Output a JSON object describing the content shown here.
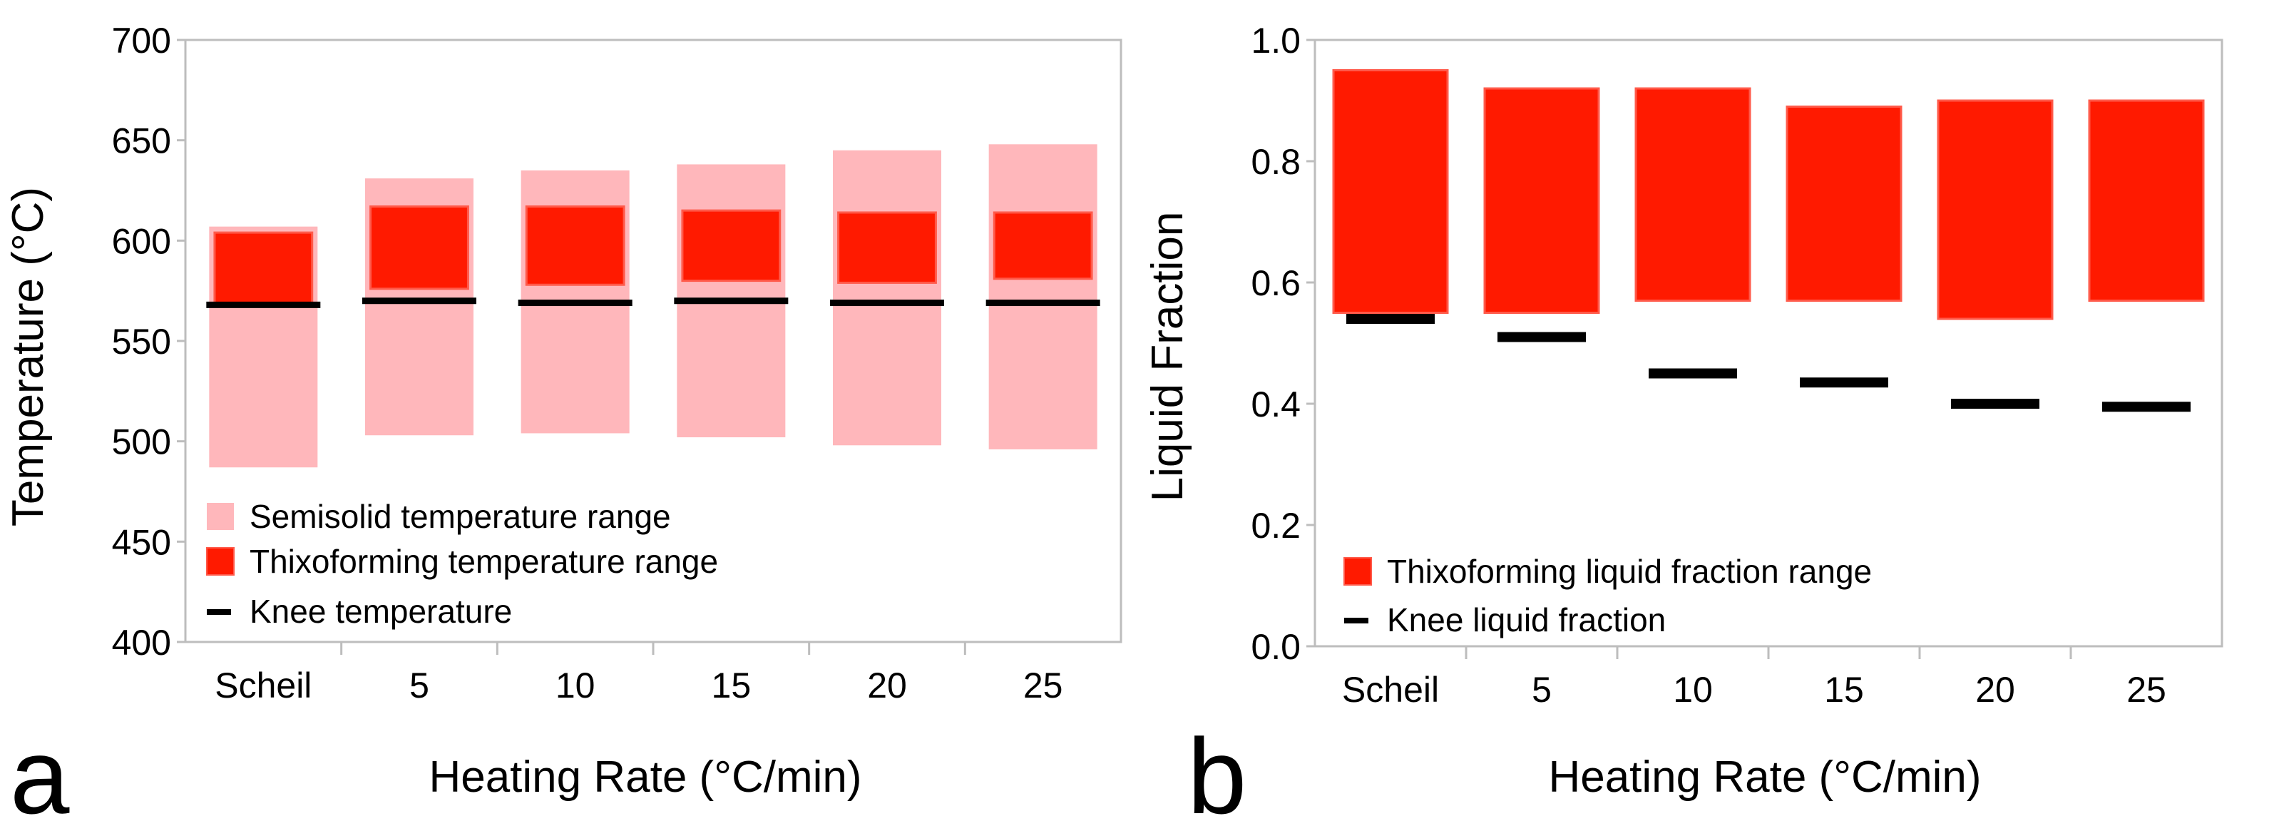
{
  "colors": {
    "semisolid": "#ffb7bb",
    "thixo": "#ff1a00",
    "thixo_edge": "#ff5a4a",
    "knee": "#000000",
    "plot_border": "#bdbdbd"
  },
  "chart_data": [
    {
      "type": "bar",
      "panel_label": "a",
      "title": "",
      "xlabel": "Heating Rate (°C/min)",
      "ylabel": "Temperature (°C)",
      "ylim": [
        400,
        700
      ],
      "yticks": [
        "400",
        "450",
        "500",
        "550",
        "600",
        "650",
        "700"
      ],
      "categories": [
        "Scheil",
        "5",
        "10",
        "15",
        "20",
        "25"
      ],
      "grid": false,
      "legend_position": "bottom-left",
      "series": [
        {
          "name": "Semisolid temperature range",
          "kind": "floating-bar",
          "low": [
            487,
            503,
            504,
            502,
            498,
            496
          ],
          "high": [
            607,
            631,
            635,
            638,
            645,
            648
          ]
        },
        {
          "name": "Thixoforming temperature range",
          "kind": "floating-bar",
          "low": [
            568,
            576,
            578,
            580,
            579,
            581
          ],
          "high": [
            604,
            617,
            617,
            615,
            614,
            614
          ]
        },
        {
          "name": "Knee temperature",
          "kind": "marker-dash",
          "values": [
            568,
            570,
            569,
            570,
            569,
            569
          ]
        }
      ]
    },
    {
      "type": "bar",
      "panel_label": "b",
      "title": "",
      "xlabel": "Heating Rate (°C/min)",
      "ylabel": "Liquid Fraction",
      "ylim": [
        0.0,
        1.0
      ],
      "yticks": [
        "0.0",
        "0.2",
        "0.4",
        "0.6",
        "0.8",
        "1.0"
      ],
      "categories": [
        "Scheil",
        "5",
        "10",
        "15",
        "20",
        "25"
      ],
      "grid": false,
      "legend_position": "bottom-left",
      "series": [
        {
          "name": "Thixoforming liquid fraction range",
          "kind": "floating-bar",
          "low": [
            0.55,
            0.55,
            0.57,
            0.57,
            0.54,
            0.57
          ],
          "high": [
            0.95,
            0.92,
            0.92,
            0.89,
            0.9,
            0.9
          ]
        },
        {
          "name": "Knee liquid fraction",
          "kind": "marker-dash",
          "values": [
            0.54,
            0.51,
            0.45,
            0.435,
            0.4,
            0.395
          ]
        }
      ]
    }
  ]
}
